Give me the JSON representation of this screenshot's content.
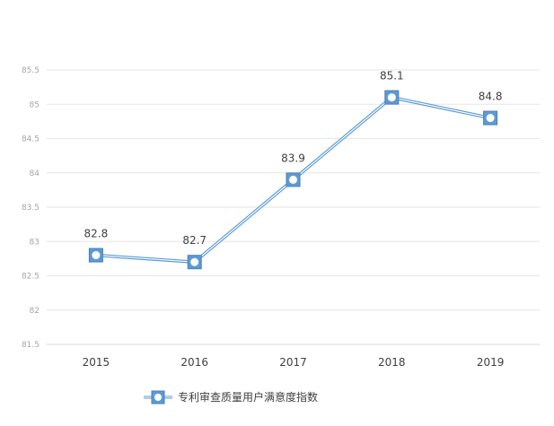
{
  "chart_data": {
    "type": "line",
    "title": "",
    "xlabel": "",
    "ylabel": "",
    "categories": [
      "2015",
      "2016",
      "2017",
      "2018",
      "2019"
    ],
    "series": [
      {
        "name": "专利审查质量用户满意度指数",
        "values": [
          82.8,
          82.7,
          83.9,
          85.1,
          84.8
        ],
        "color": "#5b9bd5"
      }
    ],
    "data_labels": [
      "82.8",
      "82.7",
      "83.9",
      "85.1",
      "84.8"
    ],
    "ylim": [
      81.5,
      85.5
    ],
    "y_ticks": [
      "81.5",
      "82",
      "82.5",
      "83",
      "83.5",
      "84",
      "84.5",
      "85",
      "85.5"
    ],
    "grid": true,
    "legend_position": "bottom"
  },
  "colors": {
    "series_line": "#5b9bd5",
    "marker_edge": "#4a7eba",
    "gridline": "#e6e6e6",
    "axis": "#d9d9d9"
  }
}
